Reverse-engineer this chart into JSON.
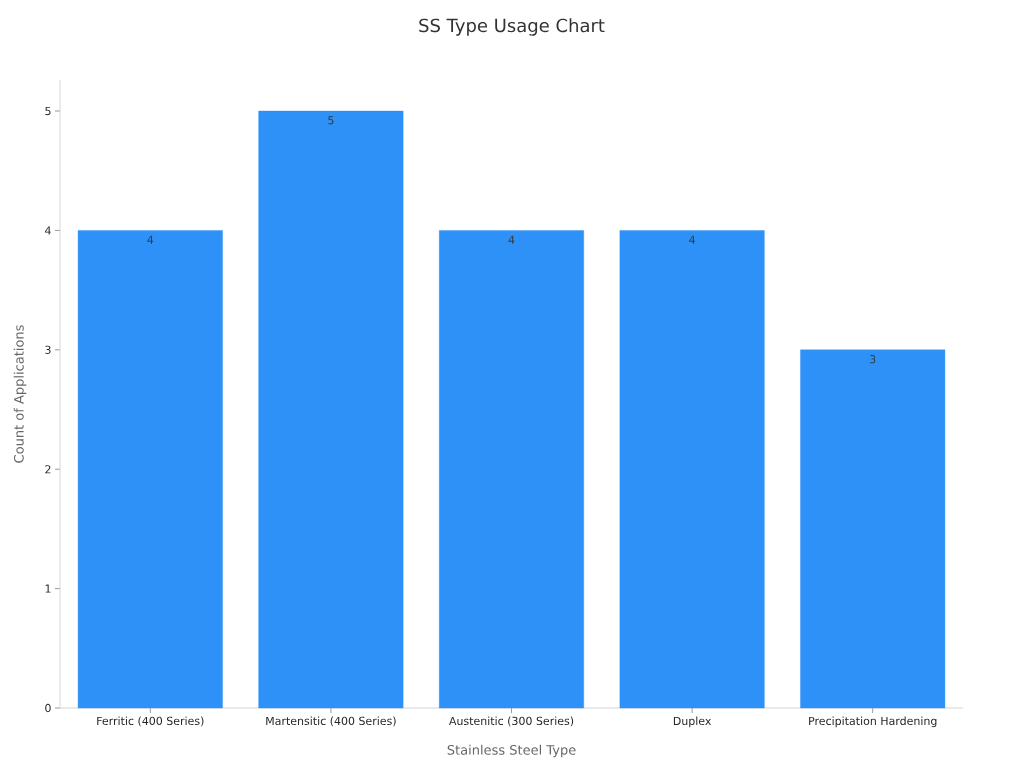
{
  "chart_data": {
    "type": "bar",
    "title": "SS Type Usage Chart",
    "xlabel": "Stainless Steel Type",
    "ylabel": "Count of Applications",
    "categories": [
      "Ferritic (400 Series)",
      "Martensitic (400 Series)",
      "Austenitic (300 Series)",
      "Duplex",
      "Precipitation Hardening"
    ],
    "values": [
      4,
      5,
      4,
      4,
      3
    ],
    "color": "#2e91f8",
    "ylim": [
      0,
      5.26
    ],
    "yticks": [
      0,
      1,
      2,
      3,
      4,
      5
    ],
    "data_labels": true
  }
}
